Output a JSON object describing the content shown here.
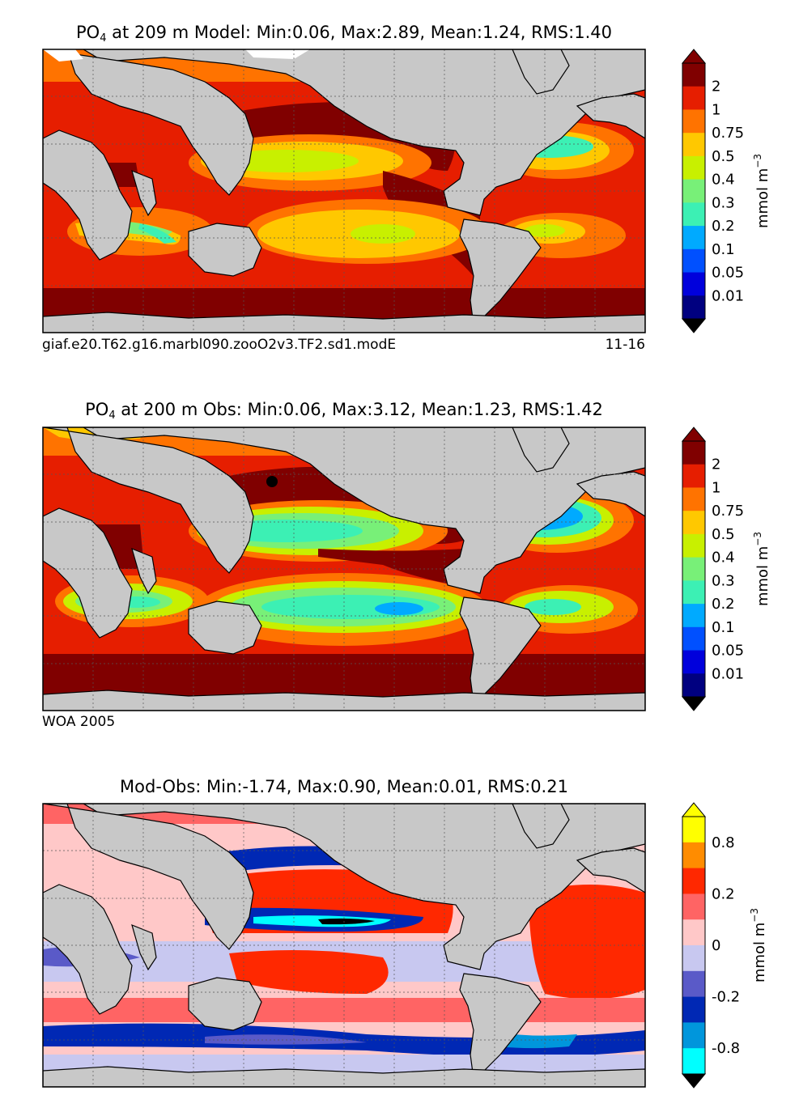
{
  "colors": {
    "land": "#c8c8c8",
    "coast": "#000000",
    "grid": "#555555"
  },
  "panels": [
    {
      "id": "model",
      "title_prefix": "PO",
      "title_sub": "4",
      "title_rest": " at 209 m Model: Min:0.06, Max:2.89, Mean:1.24, RMS:1.40",
      "caption_left": "giaf.e20.T62.g16.marbl090.zooO2v3.TF2.sd1.modE",
      "caption_right": "11-16",
      "colorbar_label": "mmol m",
      "colorbar_exp": "−3",
      "ticks": [
        "2",
        "1",
        "0.75",
        "0.5",
        "0.4",
        "0.3",
        "0.2",
        "0.1",
        "0.05",
        "0.01"
      ],
      "colors": [
        "#800000",
        "#e61e00",
        "#ff7300",
        "#ffc800",
        "#c8f000",
        "#78f078",
        "#3cf0b4",
        "#00aaff",
        "#0050ff",
        "#0000dc",
        "#000080"
      ]
    },
    {
      "id": "obs",
      "title_prefix": "PO",
      "title_sub": "4",
      "title_rest": " at 200 m Obs: Min:0.06, Max:3.12, Mean:1.23, RMS:1.42",
      "caption_left": "WOA 2005",
      "caption_right": "",
      "colorbar_label": "mmol m",
      "colorbar_exp": "−3",
      "ticks": [
        "2",
        "1",
        "0.75",
        "0.5",
        "0.4",
        "0.3",
        "0.2",
        "0.1",
        "0.05",
        "0.01"
      ],
      "colors": [
        "#800000",
        "#e61e00",
        "#ff7300",
        "#ffc800",
        "#c8f000",
        "#78f078",
        "#3cf0b4",
        "#00aaff",
        "#0050ff",
        "#0000dc",
        "#000080"
      ]
    },
    {
      "id": "diff",
      "title_prefix": "Mod-Obs: Min:-1.74, Max:0.90, Mean:0.01, RMS:0.21",
      "title_sub": "",
      "title_rest": "",
      "caption_left": "",
      "caption_right": "",
      "colorbar_label": "mmol m",
      "colorbar_exp": "−3",
      "ticks": [
        "0.8",
        "0.2",
        "0",
        "-0.2",
        "-0.8"
      ],
      "colors": [
        "#ffff00",
        "#ff8c00",
        "#ff2800",
        "#ff6464",
        "#ffc8c8",
        "#c8c8f0",
        "#5a5ac8",
        "#0028b4",
        "#0096dc",
        "#00ffff"
      ]
    }
  ],
  "chart_data": [
    {
      "type": "heatmap",
      "title": "PO4 at 209 m Model: Min:0.06, Max:2.89, Mean:1.24, RMS:1.40",
      "variable": "PO4",
      "depth_m": 209,
      "source": "Model",
      "stats": {
        "min": 0.06,
        "max": 2.89,
        "mean": 1.24,
        "rms": 1.4
      },
      "units": "mmol m^-3",
      "colorbar_levels": [
        0.01,
        0.05,
        0.1,
        0.2,
        0.3,
        0.4,
        0.5,
        0.75,
        1,
        2
      ],
      "extend": "both",
      "caption": "giaf.e20.T62.g16.marbl090.zooO2v3.TF2.sd1.modE",
      "caption_right": "11-16"
    },
    {
      "type": "heatmap",
      "title": "PO4 at 200 m Obs: Min:0.06, Max:3.12, Mean:1.23, RMS:1.42",
      "variable": "PO4",
      "depth_m": 200,
      "source": "Obs",
      "stats": {
        "min": 0.06,
        "max": 3.12,
        "mean": 1.23,
        "rms": 1.42
      },
      "units": "mmol m^-3",
      "colorbar_levels": [
        0.01,
        0.05,
        0.1,
        0.2,
        0.3,
        0.4,
        0.5,
        0.75,
        1,
        2
      ],
      "extend": "both",
      "caption": "WOA 2005"
    },
    {
      "type": "heatmap",
      "title": "Mod-Obs: Min:-1.74, Max:0.90, Mean:0.01, RMS:0.21",
      "stats": {
        "min": -1.74,
        "max": 0.9,
        "mean": 0.01,
        "rms": 0.21
      },
      "units": "mmol m^-3",
      "colorbar_ticks": [
        -0.8,
        -0.2,
        0,
        0.2,
        0.8
      ],
      "extend": "both"
    }
  ]
}
